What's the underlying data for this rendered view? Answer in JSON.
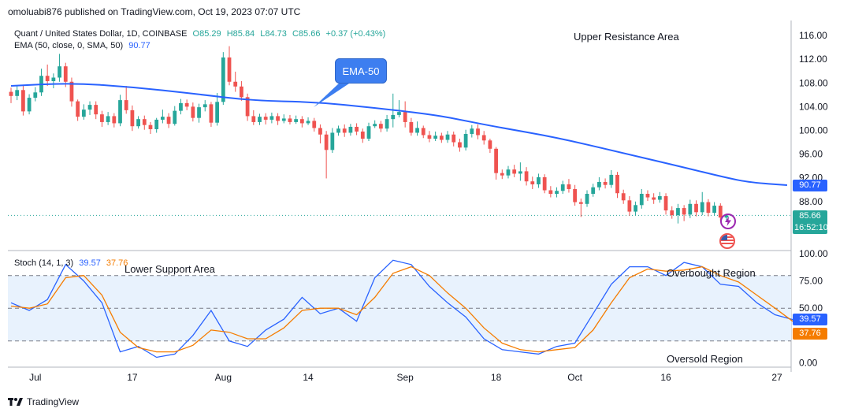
{
  "header": {
    "publisher": "omoluabi876 published on TradingView.com, Oct 19, 2023 07:07 UTC"
  },
  "legend": {
    "symbol": "Quant / United States Dollar, 1D, COINBASE",
    "ohlc": {
      "o": "O85.29",
      "h": "H85.84",
      "l": "L84.73",
      "c": "C85.66",
      "chg": "+0.37 (+0.43%)"
    },
    "ema_label": "EMA (50, close, 0, SMA, 50)",
    "ema_value": "90.77",
    "stoch_label": "Stoch (14, 1, 3)",
    "stoch_k": "39.57",
    "stoch_d": "37.76"
  },
  "annotations": {
    "upper": "Upper Resistance Area",
    "lower": "Lower Support Area",
    "overbought": "Overbought Region",
    "oversold": "Oversold Region",
    "ema_callout": "EMA-50"
  },
  "tags": {
    "ema": "90.77",
    "price": "85.66",
    "timer": "16:52:10",
    "stoch_k": "39.57",
    "stoch_d": "37.76"
  },
  "footer": {
    "brand": "TradingView"
  },
  "icons": {
    "lightning": "lightning-icon",
    "flag": "us-flag-icon",
    "logo": "tradingview-logo-icon"
  },
  "colors": {
    "up": "#26a69a",
    "down": "#ef5350",
    "ema": "#2962ff",
    "k": "#2962ff",
    "d": "#f57c00"
  },
  "chart_data": [
    {
      "type": "candlestick",
      "title": "Quant / United States Dollar, 1D, COINBASE",
      "ylim": [
        80,
        118
      ],
      "yticks": [
        116,
        112,
        108,
        104,
        100,
        96,
        92,
        88
      ],
      "xticks": [
        "Jul",
        "17",
        "Aug",
        "14",
        "Sep",
        "18",
        "Oct",
        "16",
        "27"
      ],
      "current_price": 85.66,
      "candles": [
        [
          106.5,
          105.8,
          107.2,
          104.6
        ],
        [
          105.8,
          106.8,
          107.5,
          105.1
        ],
        [
          106.8,
          103.2,
          107.6,
          102.5
        ],
        [
          103.2,
          105.5,
          106.1,
          102.7
        ],
        [
          105.5,
          106.4,
          107.3,
          104.9
        ],
        [
          106.4,
          109.2,
          110.4,
          105.8
        ],
        [
          109.2,
          108.3,
          111.1,
          107.5
        ],
        [
          108.3,
          108.9,
          109.6,
          107.1
        ],
        [
          108.9,
          110.8,
          112.9,
          108.2
        ],
        [
          110.8,
          108.2,
          111.4,
          107.3
        ],
        [
          108.2,
          104.9,
          108.9,
          104.0
        ],
        [
          104.9,
          102.3,
          105.2,
          101.6
        ],
        [
          102.3,
          103.5,
          104.4,
          101.8
        ],
        [
          103.5,
          104.3,
          104.9,
          102.6
        ],
        [
          104.3,
          102.7,
          104.9,
          101.9
        ],
        [
          102.7,
          101.4,
          103.3,
          100.6
        ],
        [
          101.4,
          102.4,
          103.1,
          100.9
        ],
        [
          102.4,
          101.2,
          102.9,
          100.5
        ],
        [
          101.2,
          105.1,
          106.0,
          100.7
        ],
        [
          105.1,
          103.4,
          107.5,
          102.8
        ],
        [
          103.4,
          100.7,
          104.2,
          99.9
        ],
        [
          100.7,
          101.9,
          102.4,
          100.3
        ],
        [
          101.9,
          100.9,
          102.5,
          100.1
        ],
        [
          100.9,
          100.2,
          101.4,
          99.4
        ],
        [
          100.2,
          101.8,
          102.1,
          99.6
        ],
        [
          101.8,
          102.3,
          103.5,
          101.2
        ],
        [
          102.3,
          101.1,
          102.9,
          100.4
        ],
        [
          101.1,
          103.3,
          104.1,
          100.8
        ],
        [
          103.3,
          104.6,
          105.3,
          102.7
        ],
        [
          104.6,
          104.0,
          105.2,
          103.4
        ],
        [
          104.0,
          102.1,
          104.7,
          101.5
        ],
        [
          102.1,
          103.9,
          104.5,
          101.3
        ],
        [
          103.9,
          104.4,
          105.1,
          103.2
        ],
        [
          104.4,
          101.3,
          104.8,
          100.6
        ],
        [
          101.3,
          104.8,
          106.3,
          100.8
        ],
        [
          104.8,
          112.3,
          113.2,
          104.3
        ],
        [
          112.3,
          108.2,
          114.2,
          107.6
        ],
        [
          108.2,
          107.4,
          109.9,
          106.5
        ],
        [
          107.4,
          105.6,
          108.3,
          105.0
        ],
        [
          105.6,
          102.4,
          106.2,
          101.6
        ],
        [
          102.4,
          101.4,
          103.4,
          100.9
        ],
        [
          101.4,
          102.3,
          102.8,
          100.9
        ],
        [
          102.3,
          101.8,
          102.9,
          101.0
        ],
        [
          101.8,
          102.4,
          103.0,
          101.2
        ],
        [
          102.4,
          101.6,
          102.9,
          100.9
        ],
        [
          101.6,
          102.0,
          102.7,
          101.2
        ],
        [
          102.0,
          101.4,
          102.6,
          101.0
        ],
        [
          101.4,
          101.9,
          102.5,
          101.1
        ],
        [
          101.9,
          101.2,
          102.4,
          100.5
        ],
        [
          101.2,
          101.6,
          102.2,
          100.9
        ],
        [
          101.6,
          100.4,
          102.1,
          99.8
        ],
        [
          100.4,
          99.3,
          101.0,
          97.8
        ],
        [
          99.3,
          96.7,
          99.9,
          91.9
        ],
        [
          96.7,
          99.6,
          100.4,
          96.2
        ],
        [
          99.6,
          100.3,
          100.8,
          99.1
        ],
        [
          100.3,
          99.6,
          101.0,
          98.9
        ],
        [
          99.6,
          100.6,
          101.1,
          99.1
        ],
        [
          100.6,
          99.8,
          101.2,
          99.2
        ],
        [
          99.8,
          98.6,
          100.3,
          97.9
        ],
        [
          98.6,
          100.7,
          101.3,
          98.2
        ],
        [
          100.7,
          101.1,
          101.7,
          100.4
        ],
        [
          101.1,
          100.3,
          101.6,
          99.7
        ],
        [
          100.3,
          101.9,
          102.6,
          99.8
        ],
        [
          101.9,
          102.6,
          106.2,
          100.5
        ],
        [
          102.6,
          103.1,
          105.1,
          102.2
        ],
        [
          103.1,
          101.4,
          104.9,
          100.5
        ],
        [
          101.4,
          99.6,
          102.1,
          99.1
        ],
        [
          99.6,
          100.4,
          101.5,
          99.1
        ],
        [
          100.4,
          99.2,
          100.8,
          98.7
        ],
        [
          99.2,
          98.6,
          99.9,
          98.0
        ],
        [
          98.6,
          99.1,
          99.8,
          98.2
        ],
        [
          99.1,
          98.4,
          99.6,
          97.9
        ],
        [
          98.4,
          99.3,
          99.9,
          97.9
        ],
        [
          99.3,
          98.0,
          99.8,
          97.3
        ],
        [
          98.0,
          97.1,
          98.6,
          96.4
        ],
        [
          97.1,
          99.4,
          100.1,
          96.6
        ],
        [
          99.4,
          100.3,
          100.9,
          98.8
        ],
        [
          100.3,
          99.2,
          101.0,
          98.5
        ],
        [
          99.2,
          98.3,
          99.9,
          97.6
        ],
        [
          98.3,
          96.9,
          98.6,
          96.2
        ],
        [
          96.9,
          92.8,
          97.2,
          91.7
        ],
        [
          92.8,
          92.4,
          93.4,
          91.8
        ],
        [
          92.4,
          93.4,
          94.0,
          91.9
        ],
        [
          93.4,
          92.7,
          94.2,
          92.1
        ],
        [
          92.7,
          93.1,
          94.6,
          91.5
        ],
        [
          93.1,
          91.4,
          93.8,
          90.7
        ],
        [
          91.4,
          90.9,
          92.2,
          90.1
        ],
        [
          90.9,
          92.1,
          92.7,
          90.3
        ],
        [
          92.1,
          89.9,
          92.6,
          89.4
        ],
        [
          89.9,
          89.3,
          90.6,
          88.7
        ],
        [
          89.3,
          89.8,
          90.4,
          88.7
        ],
        [
          89.8,
          90.9,
          91.5,
          89.3
        ],
        [
          90.9,
          90.1,
          91.8,
          89.5
        ],
        [
          90.1,
          87.9,
          90.8,
          87.3
        ],
        [
          87.9,
          87.6,
          88.5,
          85.4
        ],
        [
          87.6,
          89.3,
          89.9,
          87.1
        ],
        [
          89.3,
          90.4,
          91.0,
          88.8
        ],
        [
          90.4,
          91.3,
          92.1,
          89.9
        ],
        [
          91.3,
          90.8,
          91.9,
          90.2
        ],
        [
          90.8,
          92.5,
          93.3,
          90.3
        ],
        [
          92.5,
          89.4,
          93.0,
          88.6
        ],
        [
          89.4,
          88.2,
          90.0,
          87.6
        ],
        [
          88.2,
          86.3,
          88.9,
          85.6
        ],
        [
          86.3,
          87.4,
          88.0,
          85.7
        ],
        [
          87.4,
          89.3,
          90.1,
          86.8
        ],
        [
          89.3,
          88.7,
          89.9,
          88.1
        ],
        [
          88.7,
          88.3,
          89.4,
          87.6
        ],
        [
          88.3,
          88.9,
          89.6,
          87.8
        ],
        [
          88.9,
          86.5,
          89.4,
          85.8
        ],
        [
          86.5,
          85.7,
          87.2,
          85.1
        ],
        [
          85.7,
          86.9,
          87.6,
          84.3
        ],
        [
          86.9,
          85.8,
          87.4,
          84.7
        ],
        [
          85.8,
          87.6,
          88.3,
          85.2
        ],
        [
          87.6,
          86.2,
          88.2,
          85.5
        ],
        [
          86.2,
          87.9,
          89.6,
          85.7
        ],
        [
          87.9,
          86.1,
          88.4,
          85.5
        ],
        [
          86.1,
          87.3,
          87.9,
          85.6
        ],
        [
          87.3,
          85.3,
          87.7,
          84.73
        ],
        [
          85.29,
          85.66,
          85.84,
          84.73
        ]
      ],
      "ema50": [
        [
          0,
          107.5
        ],
        [
          10,
          108.0
        ],
        [
          20,
          107.3
        ],
        [
          30,
          106.2
        ],
        [
          40,
          105.0
        ],
        [
          50,
          104.8
        ],
        [
          60,
          103.8
        ],
        [
          70,
          102.6
        ],
        [
          75,
          101.6
        ],
        [
          80,
          100.6
        ],
        [
          90,
          98.8
        ],
        [
          100,
          96.4
        ],
        [
          110,
          94.0
        ],
        [
          118,
          92.0
        ],
        [
          122,
          91.2
        ],
        [
          128,
          90.77
        ]
      ]
    },
    {
      "type": "line",
      "title": "Stoch (14, 1, 3)",
      "ylim": [
        -4,
        100
      ],
      "yticks": [
        100.0,
        75.0,
        50.0,
        25.0,
        0.0
      ],
      "levels": {
        "upper": 80,
        "middle": 50,
        "lower": 20
      },
      "series": [
        {
          "name": "%K",
          "values": [
            [
              0,
              55
            ],
            [
              3,
              48
            ],
            [
              6,
              58
            ],
            [
              9,
              90
            ],
            [
              12,
              75
            ],
            [
              15,
              55
            ],
            [
              18,
              10
            ],
            [
              21,
              15
            ],
            [
              24,
              5
            ],
            [
              27,
              8
            ],
            [
              30,
              25
            ],
            [
              33,
              48
            ],
            [
              36,
              20
            ],
            [
              39,
              15
            ],
            [
              42,
              30
            ],
            [
              45,
              40
            ],
            [
              48,
              60
            ],
            [
              51,
              45
            ],
            [
              54,
              50
            ],
            [
              57,
              38
            ],
            [
              60,
              78
            ],
            [
              63,
              94
            ],
            [
              66,
              90
            ],
            [
              69,
              70
            ],
            [
              72,
              55
            ],
            [
              75,
              42
            ],
            [
              78,
              22
            ],
            [
              81,
              12
            ],
            [
              84,
              10
            ],
            [
              87,
              8
            ],
            [
              90,
              15
            ],
            [
              93,
              18
            ],
            [
              96,
              45
            ],
            [
              99,
              72
            ],
            [
              102,
              88
            ],
            [
              105,
              88
            ],
            [
              108,
              80
            ],
            [
              111,
              92
            ],
            [
              114,
              88
            ],
            [
              117,
              72
            ],
            [
              120,
              70
            ],
            [
              123,
              55
            ],
            [
              126,
              44
            ],
            [
              129,
              39.57
            ]
          ]
        },
        {
          "name": "%D",
          "values": [
            [
              0,
              52
            ],
            [
              3,
              50
            ],
            [
              6,
              54
            ],
            [
              9,
              78
            ],
            [
              12,
              80
            ],
            [
              15,
              62
            ],
            [
              18,
              28
            ],
            [
              21,
              14
            ],
            [
              24,
              10
            ],
            [
              27,
              10
            ],
            [
              30,
              16
            ],
            [
              33,
              30
            ],
            [
              36,
              28
            ],
            [
              39,
              22
            ],
            [
              42,
              22
            ],
            [
              45,
              32
            ],
            [
              48,
              48
            ],
            [
              51,
              50
            ],
            [
              54,
              50
            ],
            [
              57,
              44
            ],
            [
              60,
              60
            ],
            [
              63,
              82
            ],
            [
              66,
              88
            ],
            [
              69,
              80
            ],
            [
              72,
              64
            ],
            [
              75,
              50
            ],
            [
              78,
              32
            ],
            [
              81,
              18
            ],
            [
              84,
              12
            ],
            [
              87,
              10
            ],
            [
              90,
              12
            ],
            [
              93,
              14
            ],
            [
              96,
              30
            ],
            [
              99,
              55
            ],
            [
              102,
              78
            ],
            [
              105,
              86
            ],
            [
              108,
              84
            ],
            [
              111,
              85
            ],
            [
              114,
              88
            ],
            [
              117,
              80
            ],
            [
              120,
              74
            ],
            [
              123,
              62
            ],
            [
              126,
              50
            ],
            [
              129,
              37.76
            ]
          ]
        }
      ]
    }
  ]
}
